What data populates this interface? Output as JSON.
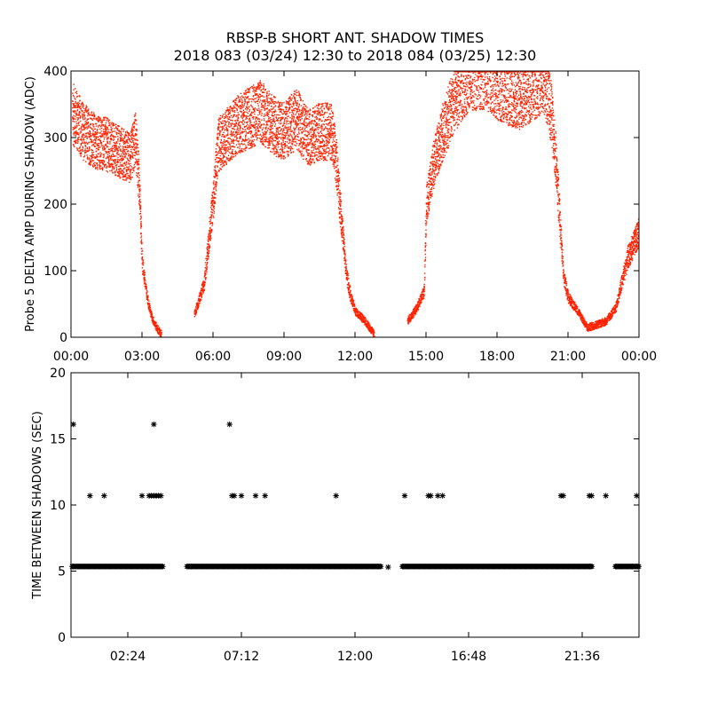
{
  "title": "RBSP-B SHORT ANT. SHADOW TIMES",
  "subtitle": "2018 083 (03/24) 12:30 to 2018 084 (03/25) 12:30",
  "chart_data": [
    {
      "type": "scatter",
      "ylabel": "Probe 5 DELTA AMP DURING SHADOW (ADC)",
      "xlabel": "",
      "xlim": [
        0,
        24
      ],
      "ylim": [
        0,
        400
      ],
      "x_ticks": [
        0,
        3,
        6,
        9,
        12,
        15,
        18,
        21,
        24
      ],
      "x_tick_labels": [
        "00:00",
        "03:00",
        "06:00",
        "09:00",
        "12:00",
        "15:00",
        "18:00",
        "21:00",
        "00:00"
      ],
      "y_ticks": [
        0,
        100,
        200,
        300,
        400
      ],
      "y_tick_labels": [
        "0",
        "100",
        "200",
        "300",
        "400"
      ],
      "color": "#ff2200",
      "series": [
        {
          "x": [
            0.0,
            0.5,
            1.0,
            1.5,
            2.0,
            2.5,
            2.7,
            2.8,
            2.9,
            3.0,
            3.2,
            3.4,
            3.6,
            3.8,
            5.2,
            5.6,
            6.0,
            6.2,
            6.5,
            7.0,
            7.5,
            8.0,
            8.5,
            9.0,
            9.5,
            10.0,
            10.5,
            11.0,
            11.2,
            11.4,
            11.6,
            11.8,
            12.0,
            12.4,
            12.8,
            14.2,
            14.6,
            14.9,
            15.0,
            15.3,
            15.6,
            15.9,
            16.2,
            16.5,
            16.8,
            17.5,
            18.0,
            18.5,
            19.0,
            19.5,
            20.0,
            20.3,
            20.5,
            20.8,
            21.0,
            21.4,
            21.8,
            22.6,
            23.0,
            23.5,
            24.0
          ],
          "y": [
            340,
            310,
            295,
            290,
            280,
            270,
            300,
            260,
            200,
            110,
            60,
            30,
            15,
            5,
            35,
            80,
            210,
            290,
            300,
            320,
            330,
            340,
            320,
            310,
            330,
            300,
            310,
            310,
            260,
            180,
            100,
            60,
            40,
            25,
            5,
            25,
            45,
            70,
            200,
            260,
            300,
            330,
            360,
            380,
            395,
            400,
            380,
            370,
            360,
            380,
            390,
            330,
            250,
            90,
            60,
            40,
            15,
            25,
            45,
            120,
            160
          ]
        }
      ]
    },
    {
      "type": "scatter",
      "ylabel": "TIME BETWEEN SHADOWS (SEC)",
      "xlabel": "",
      "xlim": [
        0,
        24
      ],
      "ylim": [
        0,
        20
      ],
      "x_ticks": [
        2.4,
        7.2,
        12.0,
        16.8,
        21.6
      ],
      "x_tick_labels": [
        "02:24",
        "07:12",
        "12:00",
        "16:48",
        "21:36"
      ],
      "y_ticks": [
        0,
        5,
        10,
        15,
        20
      ],
      "y_tick_labels": [
        "0",
        "5",
        "10",
        "15",
        "20"
      ],
      "marker": "*",
      "baseline_value": 5.35,
      "baseline_segments": [
        [
          0.05,
          3.9
        ],
        [
          4.9,
          13.1
        ],
        [
          14.0,
          22.05
        ],
        [
          23.0,
          24.0
        ]
      ],
      "points": [
        {
          "x": 0.1,
          "y": 16.1
        },
        {
          "x": 3.5,
          "y": 16.1
        },
        {
          "x": 6.7,
          "y": 16.1
        },
        {
          "x": 0.8,
          "y": 10.7
        },
        {
          "x": 1.4,
          "y": 10.7
        },
        {
          "x": 3.0,
          "y": 10.7
        },
        {
          "x": 3.3,
          "y": 10.7
        },
        {
          "x": 3.4,
          "y": 10.7
        },
        {
          "x": 3.5,
          "y": 10.7
        },
        {
          "x": 3.6,
          "y": 10.7
        },
        {
          "x": 3.7,
          "y": 10.7
        },
        {
          "x": 3.8,
          "y": 10.7
        },
        {
          "x": 6.8,
          "y": 10.7
        },
        {
          "x": 6.9,
          "y": 10.7
        },
        {
          "x": 7.2,
          "y": 10.7
        },
        {
          "x": 7.8,
          "y": 10.7
        },
        {
          "x": 8.2,
          "y": 10.7
        },
        {
          "x": 11.2,
          "y": 10.7
        },
        {
          "x": 14.1,
          "y": 10.7
        },
        {
          "x": 15.1,
          "y": 10.7
        },
        {
          "x": 15.2,
          "y": 10.7
        },
        {
          "x": 15.5,
          "y": 10.7
        },
        {
          "x": 15.7,
          "y": 10.7
        },
        {
          "x": 20.7,
          "y": 10.7
        },
        {
          "x": 20.8,
          "y": 10.7
        },
        {
          "x": 21.9,
          "y": 10.7
        },
        {
          "x": 22.0,
          "y": 10.7
        },
        {
          "x": 22.6,
          "y": 10.7
        },
        {
          "x": 23.9,
          "y": 10.7
        },
        {
          "x": 13.4,
          "y": 5.3
        }
      ]
    }
  ]
}
